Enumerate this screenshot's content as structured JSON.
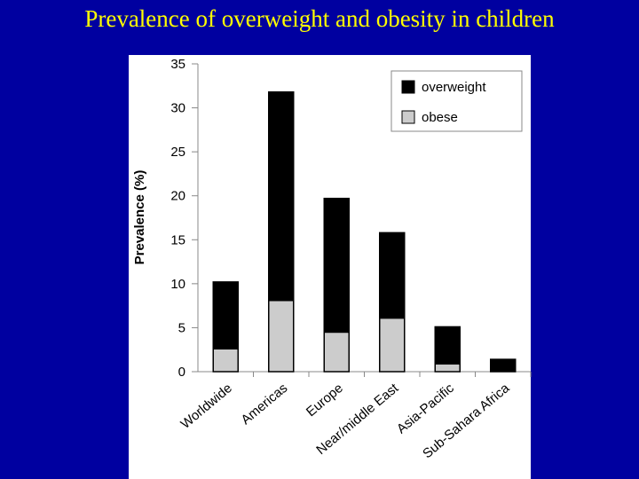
{
  "chart_data": {
    "type": "stacked-bar",
    "title": "Prevalence of overweight and obesity in children",
    "y_label": "Prevalence (%)",
    "categories": [
      "Worldwide",
      "Americas",
      "Europe",
      "Near/middle East",
      "Asia-Pacific",
      "Sub-Sahara Africa"
    ],
    "series": [
      {
        "name": "overweight",
        "color": "#000000",
        "values": [
          7.6,
          23.7,
          15.2,
          9.7,
          4.2,
          1.4
        ]
      },
      {
        "name": "obese",
        "color": "#cccccc",
        "values": [
          2.6,
          8.1,
          4.5,
          6.1,
          0.9,
          0
        ]
      }
    ],
    "ylim": [
      0,
      35
    ],
    "yticks": [
      0,
      5,
      10,
      15,
      20,
      25,
      30,
      35
    ],
    "legend": "top-right"
  }
}
